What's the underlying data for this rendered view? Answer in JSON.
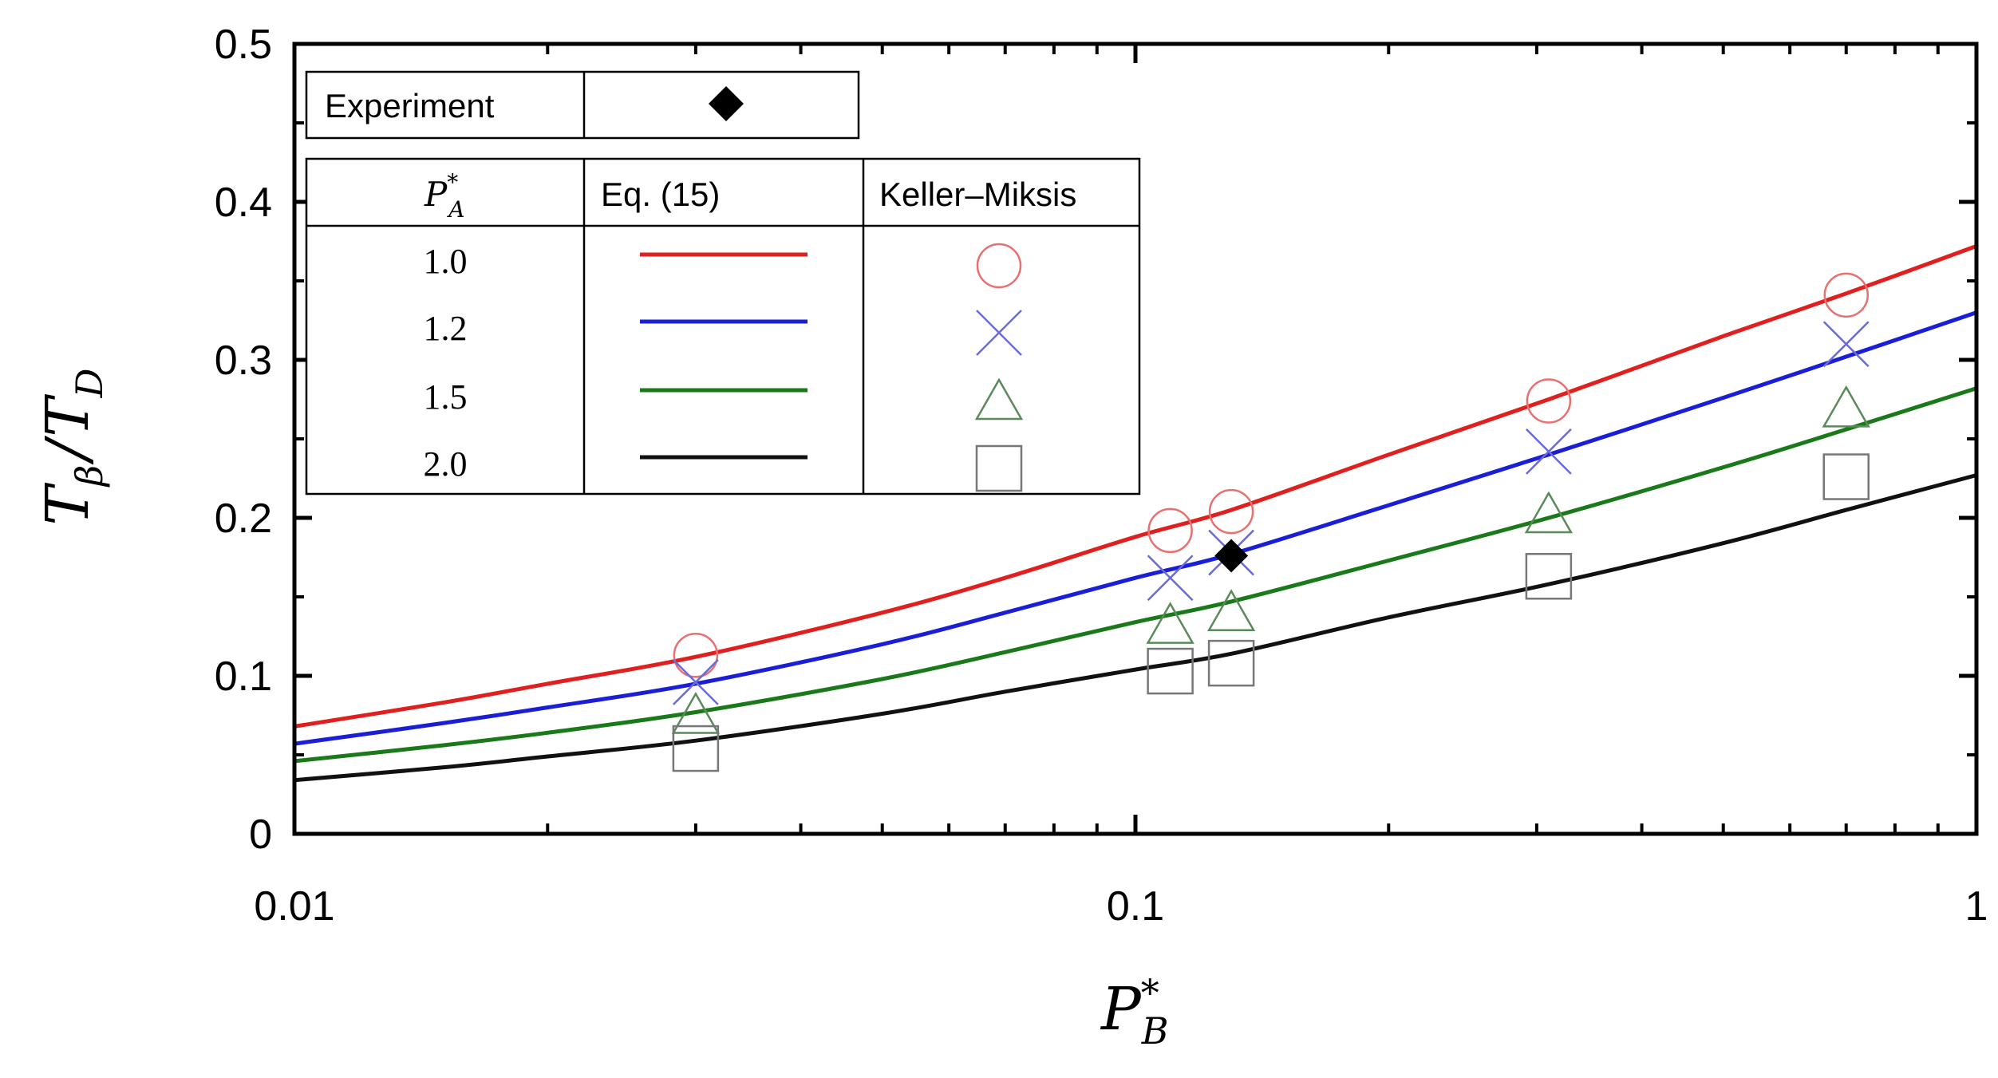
{
  "chart_data": {
    "type": "line",
    "x_scale": "log",
    "xlim": [
      0.01,
      1
    ],
    "ylim": [
      0,
      0.5
    ],
    "xlabel": {
      "base": "P",
      "sup": "*",
      "sub": "B"
    },
    "ylabel": {
      "num_base": "T",
      "num_sub": "β",
      "sep": "/",
      "den_base": "T",
      "den_sub": "D"
    },
    "x_ticks": [
      {
        "value": 0.01,
        "label": "0.01"
      },
      {
        "value": 0.1,
        "label": "0.1"
      },
      {
        "value": 1,
        "label": "1"
      }
    ],
    "y_ticks": [
      {
        "value": 0,
        "label": "0"
      },
      {
        "value": 0.1,
        "label": "0.1"
      },
      {
        "value": 0.2,
        "label": "0.2"
      },
      {
        "value": 0.3,
        "label": "0.3"
      },
      {
        "value": 0.4,
        "label": "0.4"
      },
      {
        "value": 0.5,
        "label": "0.5"
      }
    ],
    "curve_x": [
      0.01,
      0.015,
      0.02,
      0.03,
      0.05,
      0.07,
      0.1,
      0.13,
      0.2,
      0.31,
      0.5,
      0.7,
      1.0
    ],
    "series": [
      {
        "name": "1.0",
        "color": "#e0201f",
        "marker": "circle",
        "curve_y": [
          0.068,
          0.083,
          0.095,
          0.112,
          0.14,
          0.162,
          0.188,
          0.205,
          0.24,
          0.275,
          0.315,
          0.342,
          0.372
        ],
        "points": [
          [
            0.03,
            0.113
          ],
          [
            0.11,
            0.192
          ],
          [
            0.13,
            0.204
          ],
          [
            0.31,
            0.274
          ],
          [
            0.7,
            0.341
          ]
        ]
      },
      {
        "name": "1.2",
        "color": "#1a1fd6",
        "marker": "cross",
        "curve_y": [
          0.057,
          0.07,
          0.08,
          0.095,
          0.12,
          0.14,
          0.162,
          0.177,
          0.208,
          0.24,
          0.276,
          0.302,
          0.33
        ],
        "points": [
          [
            0.03,
            0.096
          ],
          [
            0.11,
            0.162
          ],
          [
            0.13,
            0.178
          ],
          [
            0.31,
            0.242
          ],
          [
            0.7,
            0.31
          ]
        ]
      },
      {
        "name": "1.5",
        "color": "#1a7a1a",
        "marker": "triangle",
        "curve_y": [
          0.046,
          0.056,
          0.064,
          0.077,
          0.098,
          0.115,
          0.134,
          0.147,
          0.173,
          0.2,
          0.232,
          0.256,
          0.282
        ],
        "points": [
          [
            0.03,
            0.075
          ],
          [
            0.11,
            0.132
          ],
          [
            0.13,
            0.14
          ],
          [
            0.31,
            0.202
          ],
          [
            0.7,
            0.269
          ]
        ]
      },
      {
        "name": "2.0",
        "color": "#111111",
        "marker": "square",
        "curve_y": [
          0.034,
          0.042,
          0.049,
          0.059,
          0.076,
          0.09,
          0.104,
          0.114,
          0.137,
          0.158,
          0.184,
          0.205,
          0.227
        ],
        "points": [
          [
            0.03,
            0.054
          ],
          [
            0.11,
            0.103
          ],
          [
            0.13,
            0.108
          ],
          [
            0.31,
            0.163
          ],
          [
            0.7,
            0.226
          ]
        ]
      }
    ],
    "experiment": {
      "name": "Experiment",
      "x": 0.13,
      "y": 0.176,
      "color": "#000000"
    },
    "legend": {
      "placement": "top-left",
      "experiment_label": "Experiment",
      "header_param": {
        "base": "P",
        "sup": "*",
        "sub": "A"
      },
      "header_eq": "Eq. (15)",
      "header_km": "Keller–Miksis"
    },
    "marker_color": "#999999",
    "marker_red": "#e87070",
    "marker_blue": "#6a6ad8",
    "marker_green": "#5a8a5a"
  }
}
